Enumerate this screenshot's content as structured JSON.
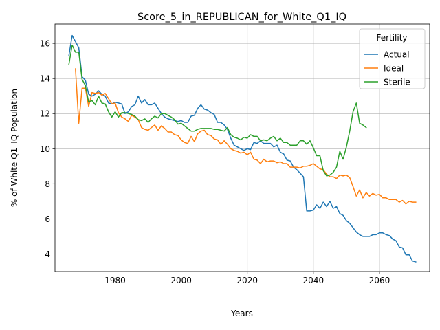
{
  "chart_data": {
    "type": "line",
    "title": "Score_5_in_REPUBLICAN_for_White_Q1_IQ",
    "xlabel": "Years",
    "ylabel": "% of White Q1_IQ Population",
    "xlim": [
      1961.8,
      2075.2
    ],
    "ylim": [
      3.0,
      17.1
    ],
    "xticks": [
      1980,
      2000,
      2020,
      2040,
      2060
    ],
    "yticks": [
      4,
      6,
      8,
      10,
      12,
      14,
      16
    ],
    "grid": true,
    "legend": {
      "title": "Fertility",
      "placement": "upper right"
    },
    "series": [
      {
        "name": "Actual",
        "color": "#1f77b4",
        "points": [
          [
            1966,
            15.3
          ],
          [
            1967,
            16.45
          ],
          [
            1968,
            16.1
          ],
          [
            1969,
            15.75
          ],
          [
            1970,
            14.1
          ],
          [
            1971,
            13.9
          ],
          [
            1972,
            13.1
          ],
          [
            1973,
            13.0
          ],
          [
            1974,
            13.1
          ],
          [
            1975,
            13.3
          ],
          [
            1976,
            13.1
          ],
          [
            1977,
            13.0
          ],
          [
            1978,
            12.6
          ],
          [
            1979,
            12.55
          ],
          [
            1980,
            12.65
          ],
          [
            1981,
            12.6
          ],
          [
            1982,
            12.55
          ],
          [
            1983,
            12.0
          ],
          [
            1984,
            12.1
          ],
          [
            1985,
            12.4
          ],
          [
            1986,
            12.5
          ],
          [
            1987,
            13.0
          ],
          [
            1988,
            12.6
          ],
          [
            1989,
            12.8
          ],
          [
            1990,
            12.5
          ],
          [
            1991,
            12.5
          ],
          [
            1992,
            12.6
          ],
          [
            1993,
            12.3
          ],
          [
            1994,
            12.0
          ],
          [
            1995,
            11.8
          ],
          [
            1996,
            11.7
          ],
          [
            1997,
            11.65
          ],
          [
            1998,
            11.6
          ],
          [
            1999,
            11.55
          ],
          [
            2000,
            11.6
          ],
          [
            2001,
            11.5
          ],
          [
            2002,
            11.5
          ],
          [
            2003,
            11.85
          ],
          [
            2004,
            11.9
          ],
          [
            2005,
            12.3
          ],
          [
            2006,
            12.5
          ],
          [
            2007,
            12.25
          ],
          [
            2008,
            12.2
          ],
          [
            2009,
            12.05
          ],
          [
            2010,
            11.95
          ],
          [
            2011,
            11.5
          ],
          [
            2012,
            11.5
          ],
          [
            2013,
            11.35
          ],
          [
            2014,
            11.1
          ],
          [
            2015,
            10.6
          ],
          [
            2016,
            10.2
          ],
          [
            2017,
            10.1
          ],
          [
            2018,
            10.0
          ],
          [
            2019,
            9.9
          ],
          [
            2020,
            10.0
          ],
          [
            2021,
            9.95
          ],
          [
            2022,
            10.35
          ],
          [
            2023,
            10.3
          ],
          [
            2024,
            10.45
          ],
          [
            2025,
            10.3
          ],
          [
            2026,
            10.3
          ],
          [
            2027,
            10.3
          ],
          [
            2028,
            10.1
          ],
          [
            2029,
            10.2
          ],
          [
            2030,
            9.8
          ],
          [
            2031,
            9.7
          ],
          [
            2032,
            9.35
          ],
          [
            2033,
            9.3
          ],
          [
            2034,
            8.95
          ],
          [
            2035,
            8.8
          ],
          [
            2036,
            8.6
          ],
          [
            2037,
            8.4
          ],
          [
            2038,
            6.45
          ],
          [
            2039,
            6.45
          ],
          [
            2040,
            6.5
          ],
          [
            2041,
            6.8
          ],
          [
            2042,
            6.6
          ],
          [
            2043,
            6.95
          ],
          [
            2044,
            6.7
          ],
          [
            2045,
            7.0
          ],
          [
            2046,
            6.6
          ],
          [
            2047,
            6.7
          ],
          [
            2048,
            6.3
          ],
          [
            2049,
            6.2
          ],
          [
            2050,
            5.9
          ],
          [
            2051,
            5.75
          ],
          [
            2052,
            5.5
          ],
          [
            2053,
            5.25
          ],
          [
            2054,
            5.1
          ],
          [
            2055,
            5.0
          ],
          [
            2056,
            5.0
          ],
          [
            2057,
            5.0
          ],
          [
            2058,
            5.1
          ],
          [
            2059,
            5.1
          ],
          [
            2060,
            5.2
          ],
          [
            2061,
            5.2
          ],
          [
            2062,
            5.1
          ],
          [
            2063,
            5.05
          ],
          [
            2064,
            4.85
          ],
          [
            2065,
            4.75
          ],
          [
            2066,
            4.4
          ],
          [
            2067,
            4.35
          ],
          [
            2068,
            3.95
          ],
          [
            2069,
            3.95
          ],
          [
            2070,
            3.6
          ],
          [
            2071,
            3.55
          ]
        ]
      },
      {
        "name": "Ideal",
        "color": "#ff7f0e",
        "points": [
          [
            1968,
            14.55
          ],
          [
            1969,
            11.45
          ],
          [
            1970,
            13.45
          ],
          [
            1971,
            13.45
          ],
          [
            1972,
            12.4
          ],
          [
            1973,
            13.2
          ],
          [
            1974,
            13.15
          ],
          [
            1975,
            13.2
          ],
          [
            1976,
            13.05
          ],
          [
            1977,
            13.15
          ],
          [
            1978,
            12.85
          ],
          [
            1979,
            12.55
          ],
          [
            1980,
            12.6
          ],
          [
            1981,
            12.05
          ],
          [
            1982,
            11.8
          ],
          [
            1983,
            11.7
          ],
          [
            1984,
            11.55
          ],
          [
            1985,
            11.9
          ],
          [
            1986,
            11.8
          ],
          [
            1987,
            11.65
          ],
          [
            1988,
            11.2
          ],
          [
            1989,
            11.1
          ],
          [
            1990,
            11.05
          ],
          [
            1991,
            11.2
          ],
          [
            1992,
            11.35
          ],
          [
            1993,
            11.05
          ],
          [
            1994,
            11.3
          ],
          [
            1995,
            11.15
          ],
          [
            1996,
            10.95
          ],
          [
            1997,
            10.95
          ],
          [
            1998,
            10.8
          ],
          [
            1999,
            10.75
          ],
          [
            2000,
            10.5
          ],
          [
            2001,
            10.35
          ],
          [
            2002,
            10.3
          ],
          [
            2003,
            10.7
          ],
          [
            2004,
            10.4
          ],
          [
            2005,
            10.85
          ],
          [
            2006,
            11.0
          ],
          [
            2007,
            11.05
          ],
          [
            2008,
            10.8
          ],
          [
            2009,
            10.75
          ],
          [
            2010,
            10.55
          ],
          [
            2011,
            10.5
          ],
          [
            2012,
            10.25
          ],
          [
            2013,
            10.45
          ],
          [
            2014,
            10.25
          ],
          [
            2015,
            10.0
          ],
          [
            2016,
            9.9
          ],
          [
            2017,
            9.85
          ],
          [
            2018,
            9.75
          ],
          [
            2019,
            9.8
          ],
          [
            2020,
            9.65
          ],
          [
            2021,
            9.8
          ],
          [
            2022,
            9.4
          ],
          [
            2023,
            9.35
          ],
          [
            2024,
            9.15
          ],
          [
            2025,
            9.4
          ],
          [
            2026,
            9.25
          ],
          [
            2027,
            9.3
          ],
          [
            2028,
            9.3
          ],
          [
            2029,
            9.2
          ],
          [
            2030,
            9.25
          ],
          [
            2031,
            9.15
          ],
          [
            2032,
            9.15
          ],
          [
            2033,
            8.95
          ],
          [
            2034,
            8.95
          ],
          [
            2035,
            8.95
          ],
          [
            2036,
            8.9
          ],
          [
            2037,
            9.0
          ],
          [
            2038,
            9.0
          ],
          [
            2039,
            9.05
          ],
          [
            2040,
            9.15
          ],
          [
            2041,
            9.0
          ],
          [
            2042,
            8.85
          ],
          [
            2043,
            8.8
          ],
          [
            2044,
            8.55
          ],
          [
            2045,
            8.4
          ],
          [
            2046,
            8.4
          ],
          [
            2047,
            8.3
          ],
          [
            2048,
            8.5
          ],
          [
            2049,
            8.45
          ],
          [
            2050,
            8.5
          ],
          [
            2051,
            8.35
          ],
          [
            2052,
            7.85
          ],
          [
            2053,
            7.3
          ],
          [
            2054,
            7.65
          ],
          [
            2055,
            7.2
          ],
          [
            2056,
            7.5
          ],
          [
            2057,
            7.3
          ],
          [
            2058,
            7.45
          ],
          [
            2059,
            7.35
          ],
          [
            2060,
            7.4
          ],
          [
            2061,
            7.2
          ],
          [
            2062,
            7.2
          ],
          [
            2063,
            7.1
          ],
          [
            2064,
            7.1
          ],
          [
            2065,
            7.1
          ],
          [
            2066,
            6.95
          ],
          [
            2067,
            7.05
          ],
          [
            2068,
            6.85
          ],
          [
            2069,
            7.0
          ],
          [
            2070,
            6.95
          ],
          [
            2071,
            6.95
          ]
        ]
      },
      {
        "name": "Sterile",
        "color": "#2ca02c",
        "points": [
          [
            1966,
            14.8
          ],
          [
            1967,
            15.9
          ],
          [
            1968,
            15.5
          ],
          [
            1969,
            15.5
          ],
          [
            1970,
            13.95
          ],
          [
            1971,
            13.6
          ],
          [
            1972,
            12.65
          ],
          [
            1973,
            12.75
          ],
          [
            1974,
            12.5
          ],
          [
            1975,
            13.0
          ],
          [
            1976,
            12.6
          ],
          [
            1977,
            12.55
          ],
          [
            1978,
            12.1
          ],
          [
            1979,
            11.8
          ],
          [
            1980,
            12.1
          ],
          [
            1981,
            11.8
          ],
          [
            1982,
            12.05
          ],
          [
            1983,
            12.05
          ],
          [
            1984,
            12.0
          ],
          [
            1985,
            11.95
          ],
          [
            1986,
            11.85
          ],
          [
            1987,
            11.65
          ],
          [
            1988,
            11.6
          ],
          [
            1989,
            11.7
          ],
          [
            1990,
            11.5
          ],
          [
            1991,
            11.7
          ],
          [
            1992,
            11.85
          ],
          [
            1993,
            11.75
          ],
          [
            1994,
            12.0
          ],
          [
            1995,
            12.0
          ],
          [
            1996,
            11.9
          ],
          [
            1997,
            11.8
          ],
          [
            1998,
            11.65
          ],
          [
            1999,
            11.4
          ],
          [
            2000,
            11.45
          ],
          [
            2001,
            11.3
          ],
          [
            2002,
            11.15
          ],
          [
            2003,
            11.0
          ],
          [
            2004,
            11.0
          ],
          [
            2005,
            11.1
          ],
          [
            2006,
            11.15
          ],
          [
            2007,
            11.15
          ],
          [
            2008,
            11.15
          ],
          [
            2009,
            11.15
          ],
          [
            2010,
            11.1
          ],
          [
            2011,
            11.1
          ],
          [
            2012,
            11.05
          ],
          [
            2013,
            11.0
          ],
          [
            2014,
            11.2
          ],
          [
            2015,
            10.8
          ],
          [
            2016,
            10.65
          ],
          [
            2017,
            10.6
          ],
          [
            2018,
            10.5
          ],
          [
            2019,
            10.65
          ],
          [
            2020,
            10.6
          ],
          [
            2021,
            10.8
          ],
          [
            2022,
            10.7
          ],
          [
            2023,
            10.7
          ],
          [
            2024,
            10.45
          ],
          [
            2025,
            10.5
          ],
          [
            2026,
            10.45
          ],
          [
            2027,
            10.6
          ],
          [
            2028,
            10.7
          ],
          [
            2029,
            10.45
          ],
          [
            2030,
            10.6
          ],
          [
            2031,
            10.35
          ],
          [
            2032,
            10.35
          ],
          [
            2033,
            10.2
          ],
          [
            2034,
            10.2
          ],
          [
            2035,
            10.2
          ],
          [
            2036,
            10.45
          ],
          [
            2037,
            10.45
          ],
          [
            2038,
            10.25
          ],
          [
            2039,
            10.45
          ],
          [
            2040,
            10.05
          ],
          [
            2041,
            9.6
          ],
          [
            2042,
            9.6
          ],
          [
            2043,
            8.75
          ],
          [
            2044,
            8.45
          ],
          [
            2045,
            8.5
          ],
          [
            2046,
            8.65
          ],
          [
            2047,
            8.95
          ],
          [
            2048,
            9.85
          ],
          [
            2049,
            9.4
          ],
          [
            2050,
            10.1
          ],
          [
            2051,
            11.0
          ],
          [
            2052,
            12.1
          ],
          [
            2053,
            12.6
          ],
          [
            2054,
            11.45
          ],
          [
            2055,
            11.35
          ],
          [
            2056,
            11.2
          ]
        ]
      }
    ]
  }
}
